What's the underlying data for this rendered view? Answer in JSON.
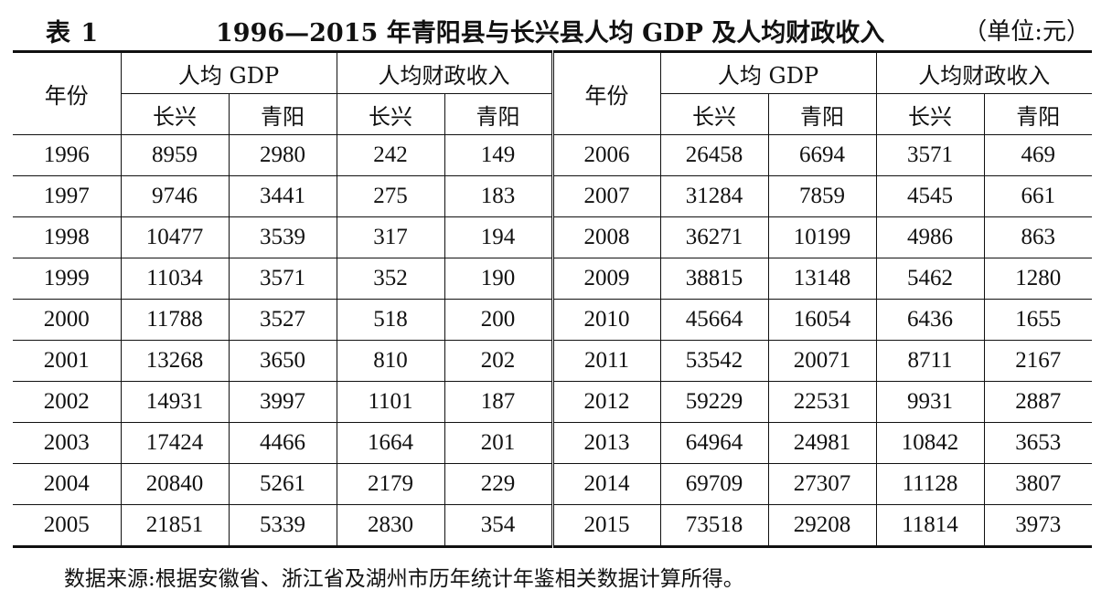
{
  "title": {
    "table_label": "表 1",
    "text": "1996—2015 年青阳县与长兴县人均 GDP 及人均财政收入",
    "unit": "（单位:元）"
  },
  "headers": {
    "year": "年份",
    "gdp_per_capita": "人均 GDP",
    "fiscal_per_capita": "人均财政收入",
    "changxing": "长兴",
    "qingyang": "青阳"
  },
  "rows": [
    {
      "left": {
        "year": "1996",
        "gdp_cx": "8959",
        "gdp_qy": "2980",
        "fis_cx": "242",
        "fis_qy": "149"
      },
      "right": {
        "year": "2006",
        "gdp_cx": "26458",
        "gdp_qy": "6694",
        "fis_cx": "3571",
        "fis_qy": "469"
      }
    },
    {
      "left": {
        "year": "1997",
        "gdp_cx": "9746",
        "gdp_qy": "3441",
        "fis_cx": "275",
        "fis_qy": "183"
      },
      "right": {
        "year": "2007",
        "gdp_cx": "31284",
        "gdp_qy": "7859",
        "fis_cx": "4545",
        "fis_qy": "661"
      }
    },
    {
      "left": {
        "year": "1998",
        "gdp_cx": "10477",
        "gdp_qy": "3539",
        "fis_cx": "317",
        "fis_qy": "194"
      },
      "right": {
        "year": "2008",
        "gdp_cx": "36271",
        "gdp_qy": "10199",
        "fis_cx": "4986",
        "fis_qy": "863"
      }
    },
    {
      "left": {
        "year": "1999",
        "gdp_cx": "11034",
        "gdp_qy": "3571",
        "fis_cx": "352",
        "fis_qy": "190"
      },
      "right": {
        "year": "2009",
        "gdp_cx": "38815",
        "gdp_qy": "13148",
        "fis_cx": "5462",
        "fis_qy": "1280"
      }
    },
    {
      "left": {
        "year": "2000",
        "gdp_cx": "11788",
        "gdp_qy": "3527",
        "fis_cx": "518",
        "fis_qy": "200"
      },
      "right": {
        "year": "2010",
        "gdp_cx": "45664",
        "gdp_qy": "16054",
        "fis_cx": "6436",
        "fis_qy": "1655"
      }
    },
    {
      "left": {
        "year": "2001",
        "gdp_cx": "13268",
        "gdp_qy": "3650",
        "fis_cx": "810",
        "fis_qy": "202"
      },
      "right": {
        "year": "2011",
        "gdp_cx": "53542",
        "gdp_qy": "20071",
        "fis_cx": "8711",
        "fis_qy": "2167"
      }
    },
    {
      "left": {
        "year": "2002",
        "gdp_cx": "14931",
        "gdp_qy": "3997",
        "fis_cx": "1101",
        "fis_qy": "187"
      },
      "right": {
        "year": "2012",
        "gdp_cx": "59229",
        "gdp_qy": "22531",
        "fis_cx": "9931",
        "fis_qy": "2887"
      }
    },
    {
      "left": {
        "year": "2003",
        "gdp_cx": "17424",
        "gdp_qy": "4466",
        "fis_cx": "1664",
        "fis_qy": "201"
      },
      "right": {
        "year": "2013",
        "gdp_cx": "64964",
        "gdp_qy": "24981",
        "fis_cx": "10842",
        "fis_qy": "3653"
      }
    },
    {
      "left": {
        "year": "2004",
        "gdp_cx": "20840",
        "gdp_qy": "5261",
        "fis_cx": "2179",
        "fis_qy": "229"
      },
      "right": {
        "year": "2014",
        "gdp_cx": "69709",
        "gdp_qy": "27307",
        "fis_cx": "11128",
        "fis_qy": "3807"
      }
    },
    {
      "left": {
        "year": "2005",
        "gdp_cx": "21851",
        "gdp_qy": "5339",
        "fis_cx": "2830",
        "fis_qy": "354"
      },
      "right": {
        "year": "2015",
        "gdp_cx": "73518",
        "gdp_qy": "29208",
        "fis_cx": "11814",
        "fis_qy": "3973"
      }
    }
  ],
  "note": "数据来源:根据安徽省、浙江省及湖州市历年统计年鉴相关数据计算所得。"
}
